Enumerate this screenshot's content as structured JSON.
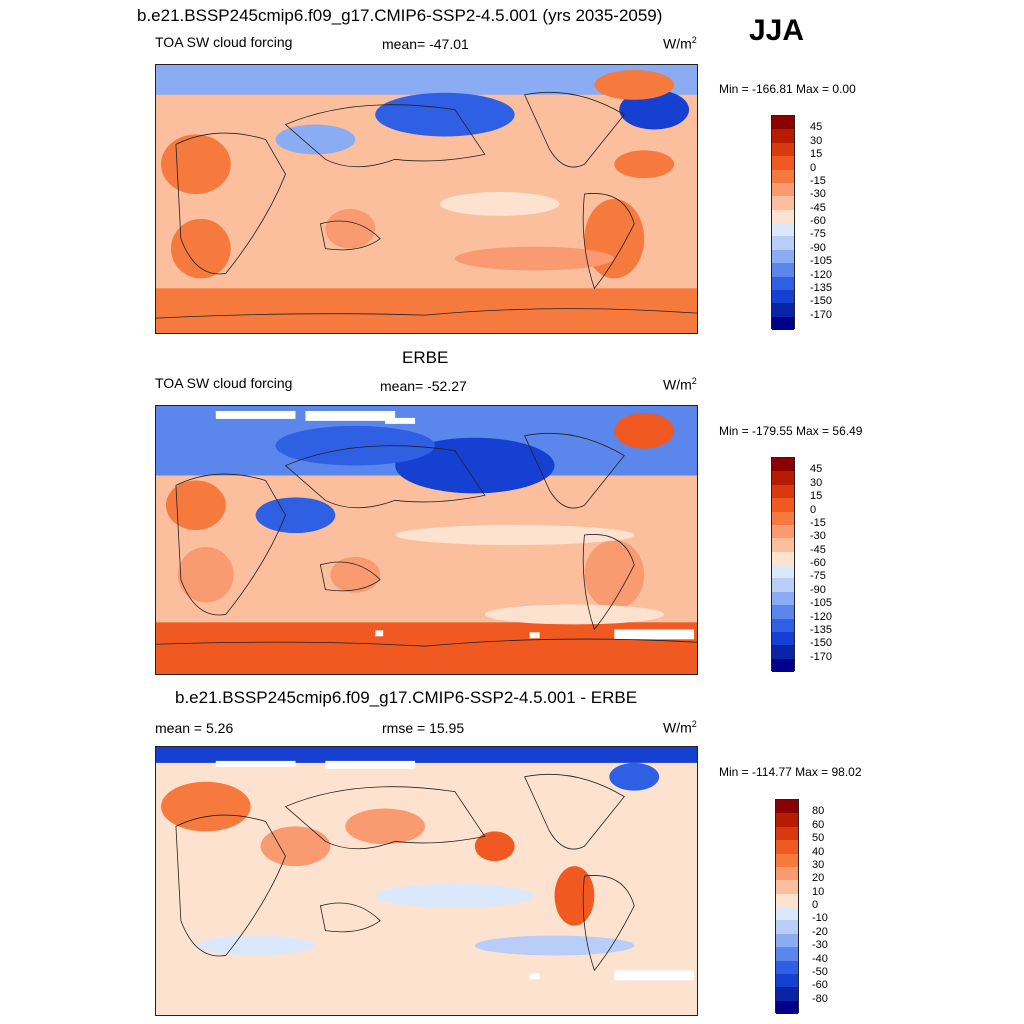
{
  "page_title": "b.e21.BSSP245cmip6.f09_g17.CMIP6-SSP2-4.5.001 (yrs 2035-2059)",
  "season": "JJA",
  "panels": [
    {
      "left": "TOA SW cloud forcing",
      "center": "mean= -47.01",
      "units": "W/m",
      "units_sup": "2",
      "minmax": "Min = -166.81 Max =   0.00"
    },
    {
      "title": "ERBE",
      "left": "TOA SW cloud forcing",
      "center": "mean= -52.27",
      "units": "W/m",
      "units_sup": "2",
      "minmax": "Min = -179.55 Max =  56.49"
    },
    {
      "title": "b.e21.BSSP245cmip6.f09_g17.CMIP6-SSP2-4.5.001 - ERBE",
      "left": "mean =   5.26",
      "center": "rmse =  15.95",
      "units": "W/m",
      "units_sup": "2",
      "minmax": "Min = -114.77 Max =  98.02"
    }
  ],
  "colorbar_abs": {
    "labels": [
      "45",
      "30",
      "15",
      "0",
      "-15",
      "-30",
      "-45",
      "-60",
      "-75",
      "-90",
      "-105",
      "-120",
      "-135",
      "-150",
      "-170"
    ],
    "colors": [
      "#8b0000",
      "#b81c00",
      "#d83a0e",
      "#f05a22",
      "#f6793e",
      "#f99a70",
      "#fbbf9e",
      "#fde3cf",
      "#dbe8fb",
      "#b8cdf7",
      "#8aacf2",
      "#5b87ec",
      "#2f5fe3",
      "#1540d1",
      "#0a24a8",
      "#00008b"
    ]
  },
  "colorbar_diff": {
    "labels": [
      "80",
      "60",
      "50",
      "40",
      "30",
      "20",
      "10",
      "0",
      "-10",
      "-20",
      "-30",
      "-40",
      "-50",
      "-60",
      "-80"
    ],
    "colors": [
      "#8b0000",
      "#b81c00",
      "#d83a0e",
      "#f05a22",
      "#f6793e",
      "#f99a70",
      "#fbbf9e",
      "#fde3cf",
      "#dbe8fb",
      "#b8cdf7",
      "#8aacf2",
      "#5b87ec",
      "#2f5fe3",
      "#1540d1",
      "#0a24a8",
      "#00008b"
    ]
  }
}
